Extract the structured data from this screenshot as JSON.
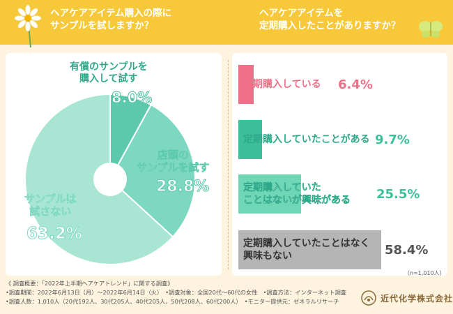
{
  "header": {
    "left_title": "ヘアケアアイテム購入の際に\nサンプルを試しますか？",
    "right_title": "ヘアケアアイテムを\n定期購入したことがありますか？",
    "banner_color": "#f7c93a"
  },
  "chart_data": [
    {
      "type": "pie",
      "title": "ヘアケアアイテム購入の際にサンプルを試しますか？",
      "slices": [
        {
          "label": "有償のサンプルを\n購入して試す",
          "value": 8.0,
          "value_text": "8.0%",
          "color": "#5cc9ad"
        },
        {
          "label": "店頭の\nサンプルを試す",
          "value": 28.8,
          "value_text": "28.8%",
          "color": "#7dd8c1"
        },
        {
          "label": "サンプルは\n試さない",
          "value": 63.2,
          "value_text": "63.2%",
          "color": "#a8e6d3"
        }
      ]
    },
    {
      "type": "bar",
      "title": "ヘアケアアイテムを定期購入したことがありますか？",
      "categories": [
        "定期購入している",
        "定期購入していたことがある",
        "定期購入していた\nことはないが興味がある",
        "定期購入していたことはなく\n興味もない"
      ],
      "values": [
        6.4,
        9.7,
        25.5,
        58.4
      ],
      "value_texts": [
        "6.4%",
        "9.7%",
        "25.5%",
        "58.4%"
      ],
      "colors": [
        "#ee7088",
        "#3dbf9a",
        "#6fd6b6",
        "#b5b5b5"
      ],
      "sample_note": "（n=1,010人）"
    }
  ],
  "footer": {
    "survey_title": "《 調査概要：「2022年上半期ヘアケアトレンド」に関する調査》",
    "line1": "•調査期間：2022年6月13日（月）〜2022年6月14日（火）　•調査対象：全国20代〜60代の女性　•調査方法：インターネット調査",
    "line2": "•調査人数：1,010人（20代192人、30代205人、40代205人、50代208人、60代200人）　•モニター提供元：ゼネラルリサーチ",
    "company": "近代化学株式会社"
  }
}
